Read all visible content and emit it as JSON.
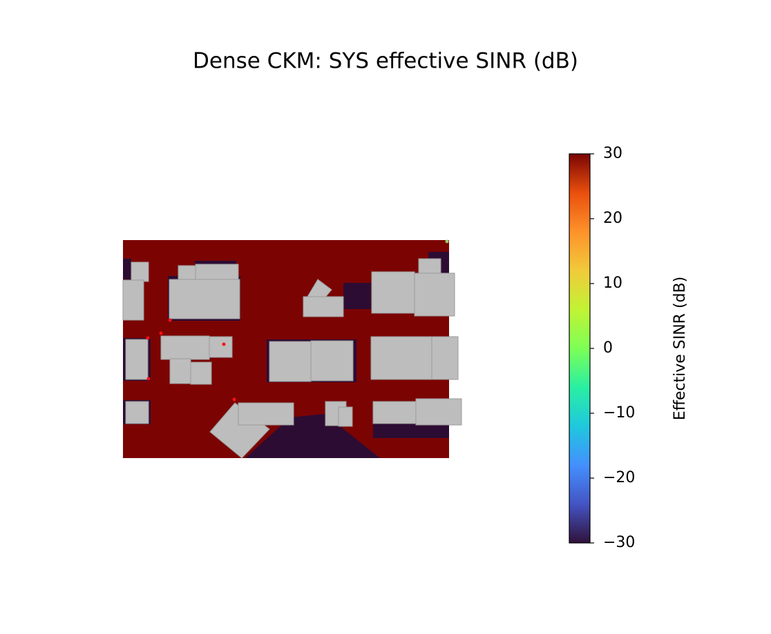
{
  "chart_data": {
    "type": "colorbar",
    "title": "Dense CKM: SYS effective SINR (dB)",
    "colorbar_label": "Effective SINR (dB)",
    "cmap": "turbo",
    "clim": [
      -30,
      30
    ],
    "ticks": [
      {
        "value": -30,
        "label": "−30"
      },
      {
        "value": -20,
        "label": "−20"
      },
      {
        "value": -10,
        "label": "−10"
      },
      0,
      10,
      20,
      30
    ]
  }
}
